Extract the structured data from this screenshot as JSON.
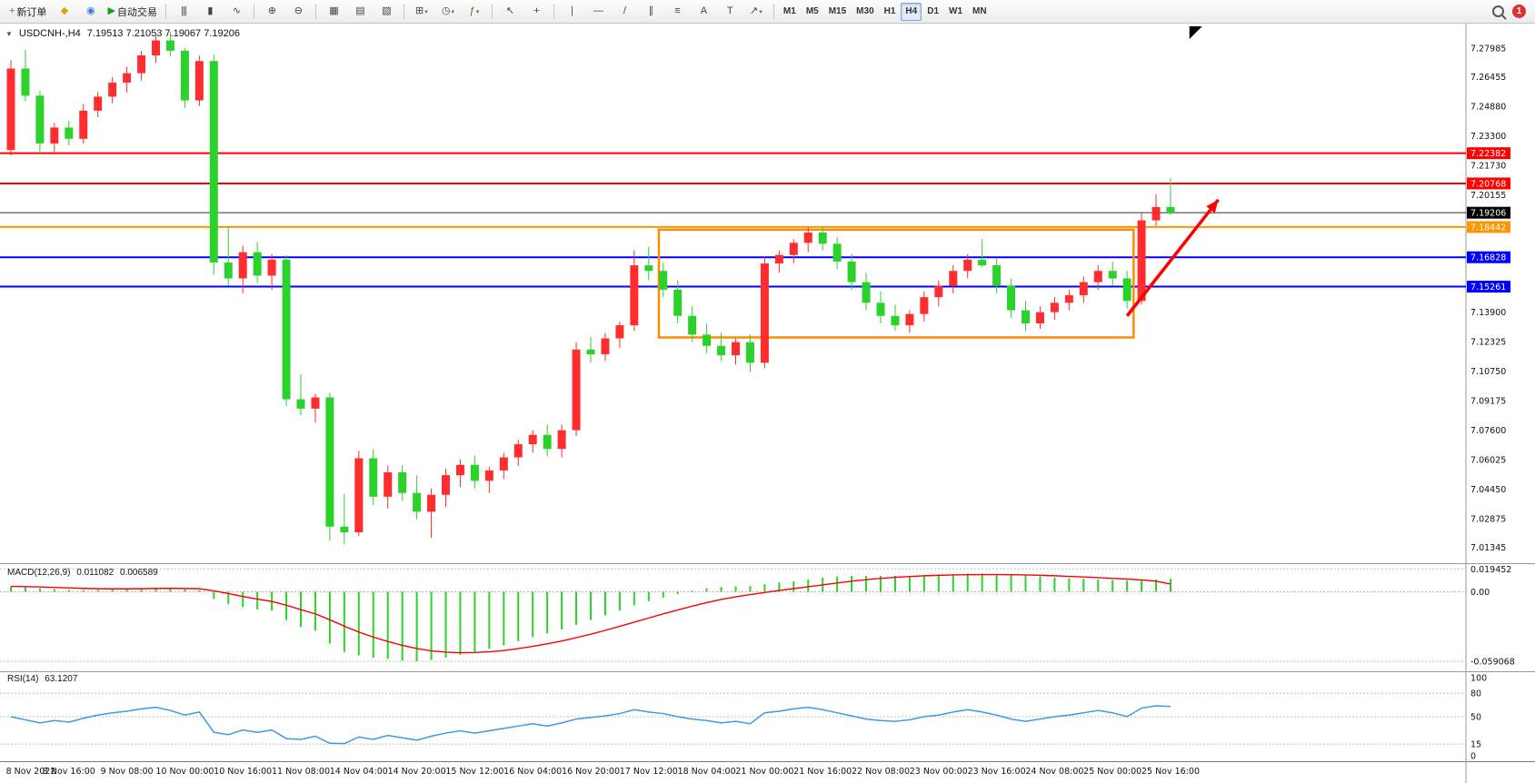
{
  "toolbar": {
    "groups": [
      {
        "items": [
          {
            "name": "new-order-button",
            "glyph": "+",
            "glyph_color": "#1fa51f",
            "label": "新订单"
          },
          {
            "name": "market-watch-button",
            "glyph": "◆",
            "glyph_color": "#d9a400"
          },
          {
            "name": "data-window-button",
            "glyph": "◉",
            "glyph_color": "#3a7bd5"
          },
          {
            "name": "auto-trading-button",
            "glyph": "▶",
            "glyph_color": "#18a018",
            "label": "自动交易"
          }
        ]
      },
      {
        "items": [
          {
            "name": "bars-chart-button",
            "glyph": "|||"
          },
          {
            "name": "candles-chart-button",
            "glyph": "▮"
          },
          {
            "name": "line-chart-button",
            "glyph": "∿"
          }
        ]
      },
      {
        "items": [
          {
            "name": "zoom-in-button",
            "glyph": "⊕"
          },
          {
            "name": "zoom-out-button",
            "glyph": "⊖"
          }
        ]
      },
      {
        "items": [
          {
            "name": "tile-windows-button",
            "glyph": "▦"
          },
          {
            "name": "arrange-windows-button",
            "glyph": "▤"
          },
          {
            "name": "cascade-windows-button",
            "glyph": "▧"
          }
        ]
      },
      {
        "items": [
          {
            "name": "new-chart-button",
            "glyph": "⊞",
            "dropdown": true
          },
          {
            "name": "profiles-button",
            "glyph": "◷",
            "dropdown": true
          },
          {
            "name": "indicators-button",
            "glyph": "ƒ",
            "glyph_color": "#2a7a2a",
            "dropdown": true
          }
        ]
      },
      {
        "items": [
          {
            "name": "cursor-button",
            "glyph": "↖"
          },
          {
            "name": "crosshair-button",
            "glyph": "+"
          }
        ]
      },
      {
        "items": [
          {
            "name": "vertical-line-button",
            "glyph": "|"
          },
          {
            "name": "horizontal-line-button",
            "glyph": "—"
          },
          {
            "name": "trendline-button",
            "glyph": "/"
          },
          {
            "name": "channel-button",
            "glyph": "∥"
          },
          {
            "name": "fibonacci-button",
            "glyph": "≡"
          },
          {
            "name": "text-button",
            "glyph": "A"
          },
          {
            "name": "label-button",
            "glyph": "T"
          },
          {
            "name": "shapes-button",
            "glyph": "↗",
            "dropdown": true
          }
        ]
      }
    ],
    "timeframes": [
      "M1",
      "M5",
      "M15",
      "M30",
      "H1",
      "H4",
      "D1",
      "W1",
      "MN"
    ],
    "active_timeframe": "H4",
    "notification_count": "1"
  },
  "chart": {
    "collapse_glyph": "▼",
    "symbol_period": "USDCNH-,H4",
    "ohlc_text": "7.19513 7.21053 7.19067 7.19206"
  },
  "indicators": {
    "macd": {
      "title": "MACD(12,26,9)",
      "value_main": "0.011082",
      "value_signal": "0.006589"
    },
    "rsi": {
      "title": "RSI(14)",
      "value": "63.1207"
    }
  },
  "colors": {
    "up": "#ff2d2d",
    "down": "#2bd22b",
    "macd_hist": "#2bd22b",
    "macd_signal": "#ff0000",
    "rsi_line": "#3d9ae8",
    "current_line": "#333333",
    "current_badge": "#000000",
    "box": "#ff8c00",
    "arrow": "#ff0000",
    "grid_dash": "#bbbbbb",
    "separator": "#999999"
  },
  "chart_data": {
    "type": "candlestick",
    "symbol": "USDCNH-",
    "period": "H4",
    "bars_per_label": 4,
    "time_labels": [
      "8 Nov 2022",
      "8 Nov 16:00",
      "9 Nov 08:00",
      "10 Nov 00:00",
      "10 Nov 16:00",
      "11 Nov 08:00",
      "14 Nov 04:00",
      "14 Nov 20:00",
      "15 Nov 12:00",
      "16 Nov 04:00",
      "16 Nov 20:00",
      "17 Nov 12:00",
      "18 Nov 04:00",
      "21 Nov 00:00",
      "21 Nov 16:00",
      "22 Nov 08:00",
      "23 Nov 00:00",
      "23 Nov 16:00",
      "24 Nov 08:00",
      "25 Nov 00:00",
      "25 Nov 16:00"
    ],
    "price_axis": {
      "max": 7.292,
      "min": 7.006,
      "labels": [
        "7.27985",
        "7.26455",
        "7.24880",
        "7.23300",
        "7.21730",
        "7.20155",
        "7.13900",
        "7.12325",
        "7.10750",
        "7.09175",
        "7.07600",
        "7.06025",
        "7.04450",
        "7.02875",
        "7.01345"
      ]
    },
    "hlines": [
      {
        "price": 7.22382,
        "label": "7.22382",
        "color": "#ff0000",
        "width": 2
      },
      {
        "price": 7.20768,
        "label": "7.20768",
        "color": "#ff0000",
        "width": 2
      },
      {
        "price": 7.18442,
        "label": "7.18442",
        "color": "#ff9500",
        "width": 2
      },
      {
        "price": 7.16828,
        "label": "7.16828",
        "color": "#0000ff",
        "width": 2
      },
      {
        "price": 7.15261,
        "label": "7.15261",
        "color": "#0000ff",
        "width": 2
      }
    ],
    "current_price": {
      "price": 7.19206,
      "label": "7.19206"
    },
    "box": {
      "x1_bar": 44.7,
      "x2_bar": 77.45,
      "top": 7.183,
      "bottom": 7.1255
    },
    "arrow": {
      "x1_bar": 77.0,
      "y1_price": 7.137,
      "x2_bar": 83.3,
      "y2_price": 7.199
    },
    "end_marker_bar": 81.3,
    "candles": [
      [
        7.2255,
        7.2735,
        7.2225,
        7.269
      ],
      [
        7.269,
        7.279,
        7.2515,
        7.2545
      ],
      [
        7.2545,
        7.257,
        7.2235,
        7.229
      ],
      [
        7.229,
        7.24,
        7.2245,
        7.2375
      ],
      [
        7.2375,
        7.241,
        7.228,
        7.2315
      ],
      [
        7.2315,
        7.25,
        7.229,
        7.2465
      ],
      [
        7.2465,
        7.2565,
        7.243,
        7.254
      ],
      [
        7.254,
        7.2645,
        7.2505,
        7.2615
      ],
      [
        7.2615,
        7.27,
        7.256,
        7.2665
      ],
      [
        7.2665,
        7.2785,
        7.2625,
        7.276
      ],
      [
        7.276,
        7.2865,
        7.272,
        7.284
      ],
      [
        7.284,
        7.2885,
        7.2755,
        7.2785
      ],
      [
        7.2785,
        7.28,
        7.248,
        7.252
      ],
      [
        7.252,
        7.276,
        7.249,
        7.273
      ],
      [
        7.273,
        7.2765,
        7.159,
        7.1655
      ],
      [
        7.1655,
        7.185,
        7.153,
        7.157
      ],
      [
        7.157,
        7.1745,
        7.149,
        7.171
      ],
      [
        7.171,
        7.1765,
        7.1545,
        7.1585
      ],
      [
        7.1585,
        7.17,
        7.151,
        7.167
      ],
      [
        7.167,
        7.1695,
        7.089,
        7.0925
      ],
      [
        7.0925,
        7.106,
        7.084,
        7.0875
      ],
      [
        7.0875,
        7.0955,
        7.08,
        7.0935
      ],
      [
        7.0935,
        7.096,
        7.017,
        7.0245
      ],
      [
        7.0245,
        7.042,
        7.015,
        7.0215
      ],
      [
        7.0215,
        7.065,
        7.0195,
        7.061
      ],
      [
        7.061,
        7.066,
        7.036,
        7.0405
      ],
      [
        7.0405,
        7.057,
        7.034,
        7.0535
      ],
      [
        7.0535,
        7.0575,
        7.0385,
        7.0425
      ],
      [
        7.0425,
        7.052,
        7.0285,
        7.0325
      ],
      [
        7.0325,
        7.045,
        7.0185,
        7.0415
      ],
      [
        7.0415,
        7.0555,
        7.035,
        7.052
      ],
      [
        7.052,
        7.0605,
        7.0455,
        7.0575
      ],
      [
        7.0575,
        7.0625,
        7.045,
        7.049
      ],
      [
        7.049,
        7.0565,
        7.0425,
        7.0545
      ],
      [
        7.0545,
        7.064,
        7.05,
        7.0615
      ],
      [
        7.0615,
        7.071,
        7.057,
        7.0685
      ],
      [
        7.0685,
        7.076,
        7.064,
        7.0735
      ],
      [
        7.0735,
        7.079,
        7.062,
        7.066
      ],
      [
        7.066,
        7.079,
        7.0615,
        7.076
      ],
      [
        7.076,
        7.123,
        7.073,
        7.119
      ],
      [
        7.119,
        7.126,
        7.112,
        7.1165
      ],
      [
        7.1165,
        7.128,
        7.113,
        7.125
      ],
      [
        7.125,
        7.134,
        7.12,
        7.132
      ],
      [
        7.132,
        7.172,
        7.129,
        7.164
      ],
      [
        7.164,
        7.174,
        7.156,
        7.161
      ],
      [
        7.161,
        7.1655,
        7.147,
        7.151
      ],
      [
        7.151,
        7.156,
        7.133,
        7.137
      ],
      [
        7.137,
        7.142,
        7.123,
        7.127
      ],
      [
        7.127,
        7.133,
        7.117,
        7.121
      ],
      [
        7.121,
        7.128,
        7.113,
        7.116
      ],
      [
        7.116,
        7.125,
        7.111,
        7.123
      ],
      [
        7.123,
        7.127,
        7.107,
        7.112
      ],
      [
        7.112,
        7.169,
        7.109,
        7.165
      ],
      [
        7.165,
        7.172,
        7.16,
        7.1695
      ],
      [
        7.1695,
        7.178,
        7.165,
        7.176
      ],
      [
        7.176,
        7.1845,
        7.171,
        7.1815
      ],
      [
        7.1815,
        7.185,
        7.172,
        7.1755
      ],
      [
        7.1755,
        7.179,
        7.162,
        7.166
      ],
      [
        7.166,
        7.17,
        7.151,
        7.155
      ],
      [
        7.155,
        7.16,
        7.14,
        7.144
      ],
      [
        7.144,
        7.15,
        7.133,
        7.137
      ],
      [
        7.137,
        7.143,
        7.129,
        7.132
      ],
      [
        7.132,
        7.14,
        7.128,
        7.138
      ],
      [
        7.138,
        7.15,
        7.134,
        7.147
      ],
      [
        7.147,
        7.156,
        7.142,
        7.153
      ],
      [
        7.153,
        7.164,
        7.149,
        7.161
      ],
      [
        7.161,
        7.17,
        7.157,
        7.167
      ],
      [
        7.167,
        7.178,
        7.163,
        7.164
      ],
      [
        7.164,
        7.168,
        7.149,
        7.153
      ],
      [
        7.153,
        7.157,
        7.136,
        7.14
      ],
      [
        7.14,
        7.145,
        7.129,
        7.133
      ],
      [
        7.133,
        7.142,
        7.13,
        7.139
      ],
      [
        7.139,
        7.147,
        7.135,
        7.144
      ],
      [
        7.144,
        7.151,
        7.14,
        7.148
      ],
      [
        7.148,
        7.158,
        7.144,
        7.155
      ],
      [
        7.155,
        7.164,
        7.151,
        7.161
      ],
      [
        7.161,
        7.166,
        7.153,
        7.157
      ],
      [
        7.157,
        7.161,
        7.141,
        7.145
      ],
      [
        7.145,
        7.192,
        7.143,
        7.188
      ],
      [
        7.188,
        7.202,
        7.185,
        7.1951
      ],
      [
        7.19513,
        7.21053,
        7.19067,
        7.19206
      ]
    ],
    "macd": {
      "axis_labels": [
        "0.019452",
        "0.00",
        "-0.059068"
      ],
      "axis_values": [
        0.019452,
        0,
        -0.059068
      ],
      "main": [
        0.0045,
        0.004,
        0.003,
        0.0022,
        0.0016,
        0.0014,
        0.0016,
        0.002,
        0.0026,
        0.0032,
        0.0036,
        0.0034,
        0.002,
        0.0012,
        -0.006,
        -0.0105,
        -0.013,
        -0.015,
        -0.016,
        -0.024,
        -0.03,
        -0.033,
        -0.044,
        -0.051,
        -0.054,
        -0.056,
        -0.057,
        -0.0585,
        -0.0591,
        -0.058,
        -0.056,
        -0.0535,
        -0.051,
        -0.0485,
        -0.0455,
        -0.042,
        -0.0385,
        -0.0355,
        -0.032,
        -0.028,
        -0.024,
        -0.02,
        -0.016,
        -0.0115,
        -0.008,
        -0.005,
        -0.002,
        0.001,
        0.003,
        0.004,
        0.0045,
        0.005,
        0.0065,
        0.008,
        0.009,
        0.0105,
        0.012,
        0.013,
        0.0135,
        0.0135,
        0.0135,
        0.0135,
        0.0135,
        0.014,
        0.0145,
        0.015,
        0.0155,
        0.0155,
        0.015,
        0.0145,
        0.014,
        0.013,
        0.012,
        0.0115,
        0.011,
        0.0105,
        0.01,
        0.0095,
        0.01,
        0.0105,
        0.011082
      ],
      "signal": [
        0.0046,
        0.0044,
        0.0041,
        0.0037,
        0.0033,
        0.0029,
        0.0026,
        0.0025,
        0.0025,
        0.0026,
        0.0028,
        0.0029,
        0.0028,
        0.0026,
        0.0008,
        -0.0015,
        -0.004,
        -0.0062,
        -0.0082,
        -0.0114,
        -0.0152,
        -0.0187,
        -0.0238,
        -0.0292,
        -0.0342,
        -0.0385,
        -0.0422,
        -0.0455,
        -0.0482,
        -0.0502,
        -0.0513,
        -0.0518,
        -0.0516,
        -0.051,
        -0.0499,
        -0.0483,
        -0.0464,
        -0.0442,
        -0.0418,
        -0.039,
        -0.036,
        -0.0328,
        -0.0294,
        -0.0258,
        -0.0223,
        -0.0188,
        -0.0155,
        -0.0122,
        -0.0092,
        -0.0065,
        -0.0043,
        -0.0024,
        -0.0006,
        0.0011,
        0.0027,
        0.0043,
        0.0058,
        0.0075,
        0.009,
        0.0103,
        0.0114,
        0.0123,
        0.013,
        0.0136,
        0.014,
        0.0143,
        0.0145,
        0.0146,
        0.0146,
        0.0145,
        0.0143,
        0.014,
        0.0136,
        0.0131,
        0.0126,
        0.012,
        0.0114,
        0.0108,
        0.0101,
        0.009,
        0.006589
      ]
    },
    "rsi": {
      "levels": [
        100,
        80,
        50,
        15,
        0
      ],
      "dashed_levels": [
        80,
        50,
        15
      ],
      "values": [
        50,
        46,
        42,
        45,
        43,
        48,
        52,
        55,
        57,
        60,
        62,
        58,
        52,
        56,
        30,
        27,
        33,
        30,
        33,
        22,
        21,
        25,
        16,
        15.5,
        24,
        21,
        26,
        23,
        20,
        25,
        29,
        32,
        29,
        32,
        35,
        38,
        41,
        38,
        42,
        47,
        49,
        51,
        54,
        59,
        56,
        54,
        50,
        47,
        45,
        42,
        44,
        41,
        55,
        57,
        60,
        62,
        59,
        55,
        51,
        47,
        45,
        44,
        46,
        50,
        52,
        56,
        59,
        56,
        52,
        47,
        44,
        47,
        50,
        52,
        55,
        58,
        55,
        50,
        61,
        64,
        63.12
      ]
    }
  }
}
